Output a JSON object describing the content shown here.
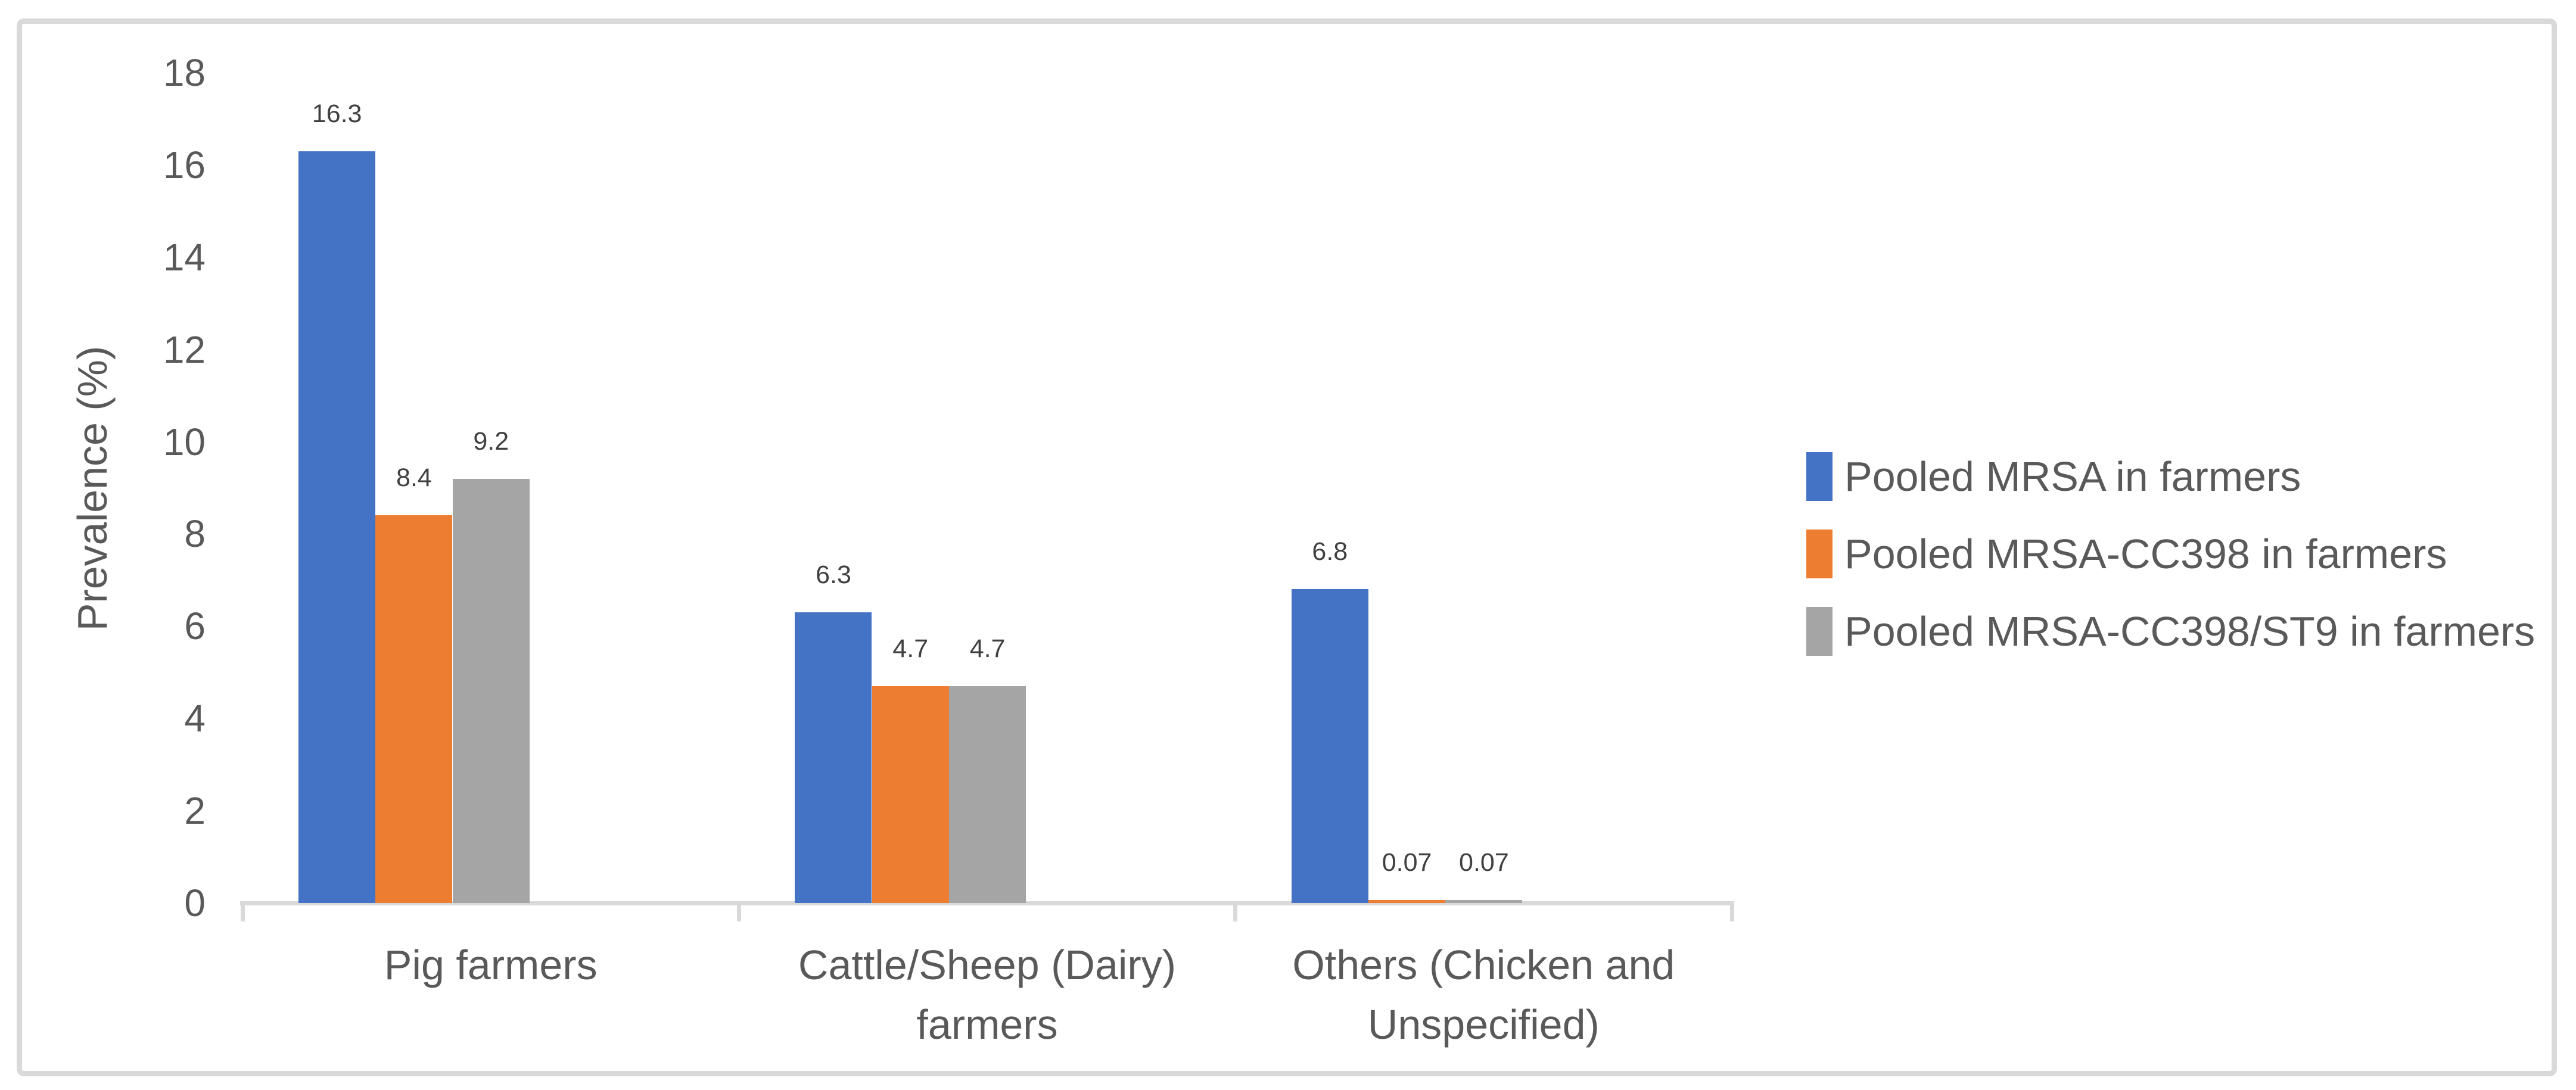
{
  "chart_data": {
    "type": "bar",
    "title": "",
    "xlabel": "",
    "ylabel": "Prevalence (%)",
    "ylim": [
      0,
      18
    ],
    "ytick_step": 2,
    "yticks": [
      "0",
      "2",
      "4",
      "6",
      "8",
      "10",
      "12",
      "14",
      "16",
      "18"
    ],
    "grid": false,
    "legend_position": "right",
    "categories": [
      {
        "label": "Pig farmers",
        "lines": [
          "Pig farmers"
        ]
      },
      {
        "label": "Cattle/Sheep (Dairy) farmers",
        "lines": [
          "Cattle/Sheep (Dairy)",
          "farmers"
        ]
      },
      {
        "label": "Others (Chicken and Unspecified)",
        "lines": [
          "Others (Chicken and",
          "Unspecified)"
        ]
      }
    ],
    "series": [
      {
        "name": "Pooled MRSA in farmers",
        "color": "#4472C4",
        "values": [
          16.3,
          6.3,
          6.8
        ],
        "value_labels": [
          "16.3",
          "6.3",
          "6.8"
        ]
      },
      {
        "name": "Pooled MRSA-CC398 in farmers",
        "color": "#ED7D31",
        "values": [
          8.4,
          4.7,
          0.07
        ],
        "value_labels": [
          "8.4",
          "4.7",
          "0.07"
        ]
      },
      {
        "name": "Pooled MRSA-CC398/ST9 in farmers",
        "color": "#A5A5A5",
        "values": [
          9.2,
          4.7,
          0.07
        ],
        "value_labels": [
          "9.2",
          "4.7",
          "0.07"
        ]
      }
    ],
    "axis_color": "#D9D9D9",
    "tick_label_color": "#595959",
    "data_label_color": "#404040"
  }
}
